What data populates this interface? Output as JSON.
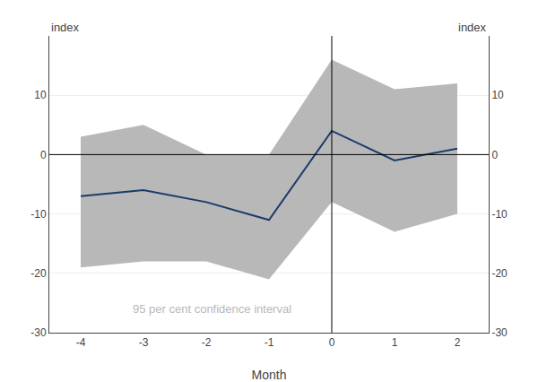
{
  "chart_data": {
    "type": "line",
    "x": [
      -4,
      -3,
      -2,
      -1,
      0,
      1,
      2
    ],
    "series": [
      {
        "type": "band",
        "color": "#b8b8b8",
        "lower": [
          -19,
          -18,
          -18,
          -21,
          -8,
          -13,
          -10
        ],
        "upper": [
          3,
          5,
          0,
          0,
          16,
          11,
          12
        ]
      },
      {
        "type": "line",
        "color": "#1a3a6b",
        "values": [
          -7,
          -6,
          -8,
          -11,
          4,
          -1,
          1
        ]
      }
    ],
    "xlabel": "Month",
    "ylabel": "index",
    "y2label": "index",
    "xlim": [
      -4.5,
      2.5
    ],
    "xticks": [
      -4,
      -3,
      -2,
      -1,
      0,
      1,
      2
    ],
    "ylim": [
      -30,
      20
    ],
    "yticks": [
      -30,
      -20,
      -10,
      0,
      10
    ],
    "y2lim": [
      -30,
      20
    ],
    "y2ticks": [
      -30,
      -20,
      -10,
      0,
      10
    ],
    "vline_x": 0,
    "hline_y": 0,
    "grid": true,
    "annotations": [
      {
        "text": "95 per cent confidence interval",
        "x": -3.2,
        "y": -26,
        "color": "#b8b8b8"
      }
    ]
  }
}
